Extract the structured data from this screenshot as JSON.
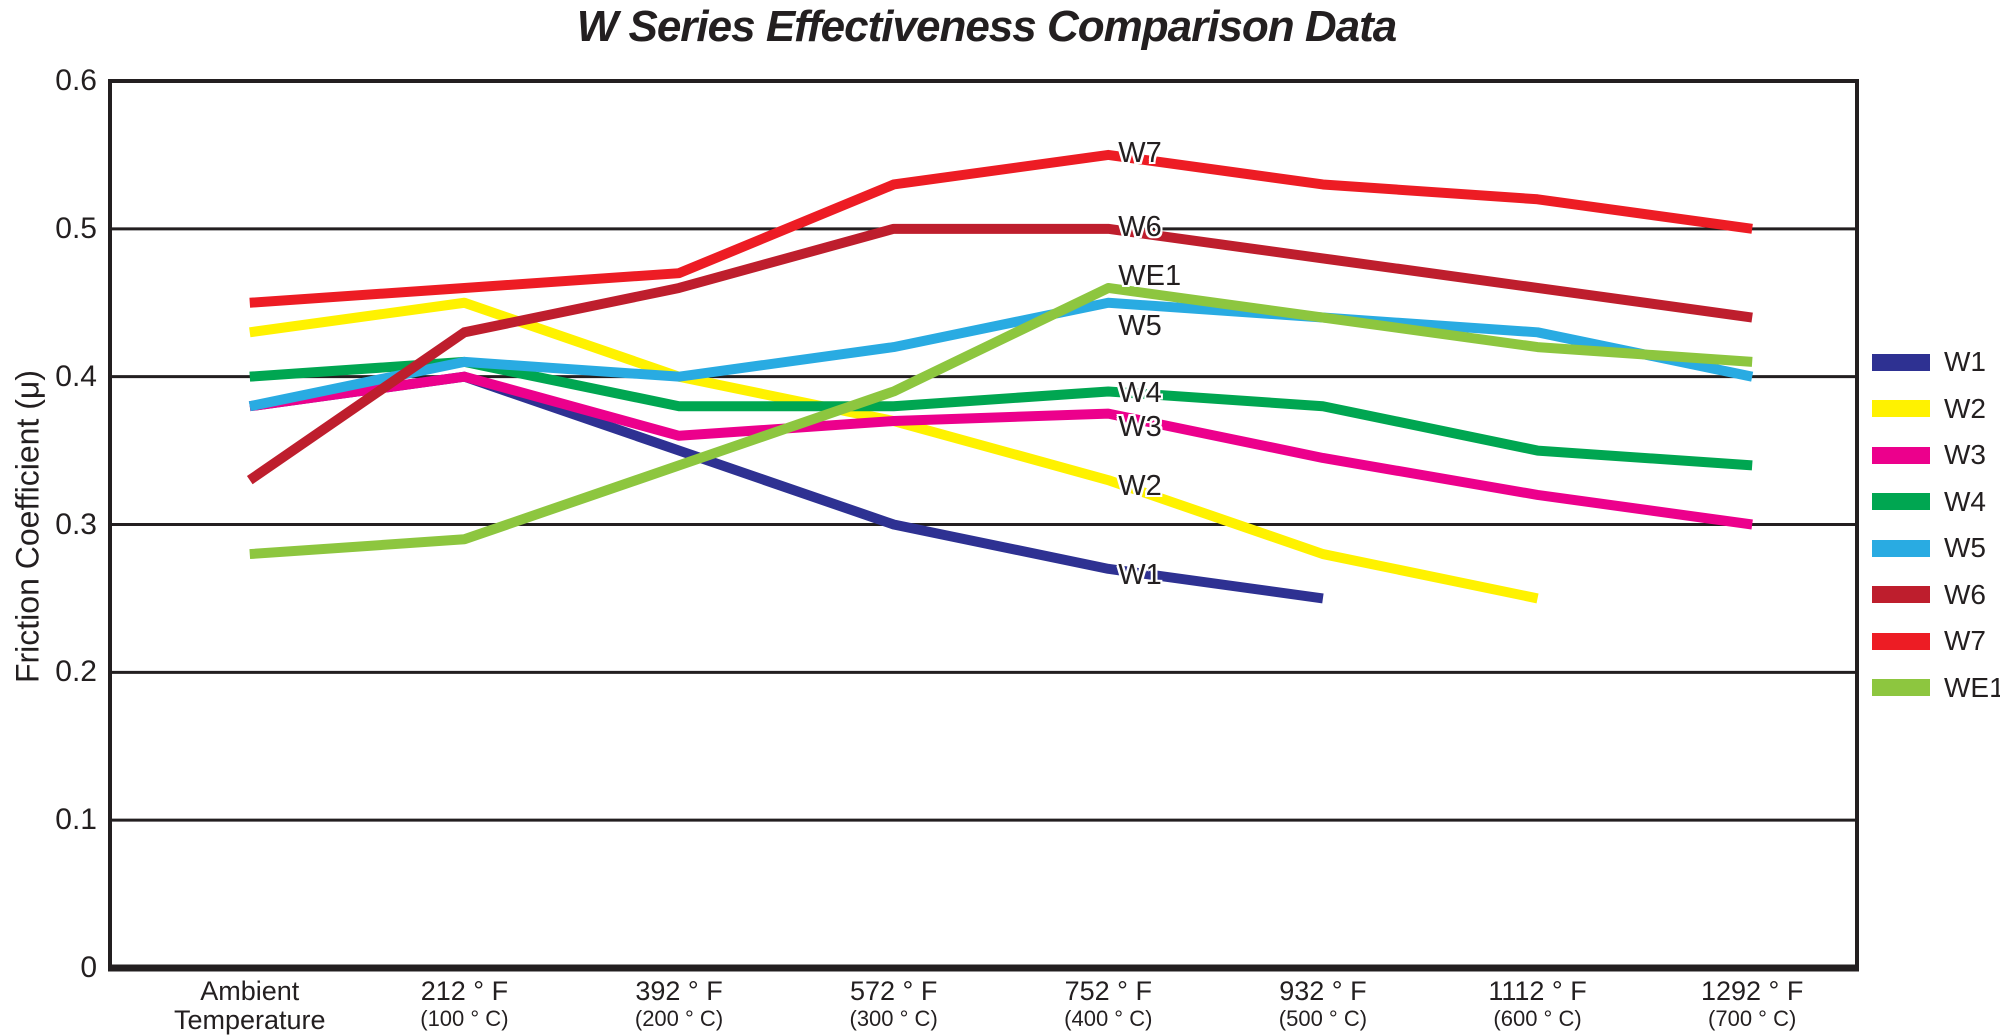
{
  "chart_data": {
    "type": "line",
    "title": "W Series Effectiveness Comparison Data",
    "ylabel": "Friction Coefficient (μ)",
    "xlabel": "",
    "ylim": [
      0,
      0.6
    ],
    "grid": "horizontal",
    "axis_color": "#231f20",
    "background": "#ffffff",
    "legend_position": "right",
    "y_ticks": [
      {
        "value": 0.6,
        "label": "0.6"
      },
      {
        "value": 0.5,
        "label": "0.5"
      },
      {
        "value": 0.4,
        "label": "0.4"
      },
      {
        "value": 0.3,
        "label": "0.3"
      },
      {
        "value": 0.2,
        "label": "0.2"
      },
      {
        "value": 0.1,
        "label": "0.1"
      },
      {
        "value": 0,
        "label": "0"
      }
    ],
    "categories": [
      {
        "line1": "Ambient",
        "line2": "Temperature",
        "line2_small": false
      },
      {
        "line1": "212 ° F",
        "line2": "(100 ° C)",
        "line2_small": true
      },
      {
        "line1": "392 ° F",
        "line2": "(200 ° C)",
        "line2_small": true
      },
      {
        "line1": "572 ° F",
        "line2": "(300 ° C)",
        "line2_small": true
      },
      {
        "line1": "752 ° F",
        "line2": "(400 ° C)",
        "line2_small": true
      },
      {
        "line1": "932 ° F",
        "line2": "(500 ° C)",
        "line2_small": true
      },
      {
        "line1": "1112 ° F",
        "line2": "(600 ° C)",
        "line2_small": true
      },
      {
        "line1": "1292 ° F",
        "line2": "(700 ° C)",
        "line2_small": true
      }
    ],
    "series": [
      {
        "name": "W1",
        "color": "#2E3192",
        "values": [
          0.38,
          0.4,
          0.35,
          0.3,
          0.27,
          0.25,
          null,
          null
        ]
      },
      {
        "name": "W2",
        "color": "#FFF200",
        "values": [
          0.43,
          0.45,
          0.4,
          0.37,
          0.33,
          0.28,
          0.25,
          null
        ]
      },
      {
        "name": "W3",
        "color": "#EC008C",
        "values": [
          0.38,
          0.4,
          0.36,
          0.37,
          0.375,
          0.345,
          0.32,
          0.3
        ]
      },
      {
        "name": "W4",
        "color": "#00A651",
        "values": [
          0.4,
          0.41,
          0.38,
          0.38,
          0.39,
          0.38,
          0.35,
          0.34
        ]
      },
      {
        "name": "W5",
        "color": "#29ABE2",
        "values": [
          0.38,
          0.41,
          0.4,
          0.42,
          0.45,
          0.44,
          0.43,
          0.4
        ]
      },
      {
        "name": "W6",
        "color": "#BE1E2D",
        "values": [
          0.33,
          0.43,
          0.46,
          0.5,
          0.5,
          0.48,
          0.46,
          0.44
        ]
      },
      {
        "name": "W7",
        "color": "#ED1C24",
        "values": [
          0.45,
          0.46,
          0.47,
          0.53,
          0.55,
          0.53,
          0.52,
          0.5
        ]
      },
      {
        "name": "WE1",
        "color": "#8DC63F",
        "values": [
          0.28,
          0.29,
          0.34,
          0.39,
          0.46,
          0.44,
          0.42,
          0.41
        ]
      }
    ],
    "line_labels": [
      {
        "text": "W7",
        "value": 0.551
      },
      {
        "text": "W6",
        "value": 0.501
      },
      {
        "text": "WE1",
        "value": 0.468
      },
      {
        "text": "W5",
        "value": 0.434
      },
      {
        "text": "W4",
        "value": 0.389
      },
      {
        "text": "W3",
        "value": 0.366
      },
      {
        "text": "W2",
        "value": 0.326
      },
      {
        "text": "W1",
        "value": 0.266
      }
    ],
    "legend_items": [
      "W1",
      "W2",
      "W3",
      "W4",
      "W5",
      "W6",
      "W7",
      "WE1"
    ]
  }
}
